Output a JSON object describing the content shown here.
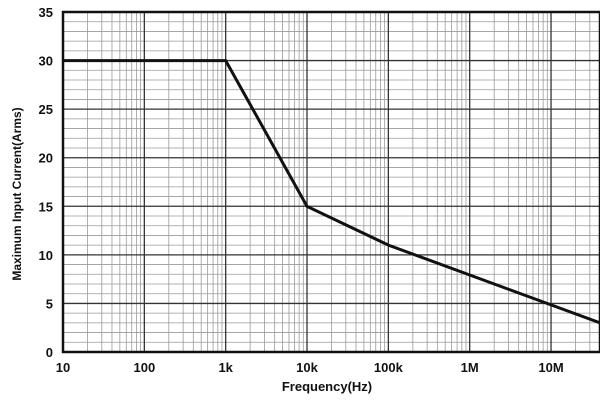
{
  "chart_data": {
    "type": "line",
    "title": "",
    "xlabel": "Frequency(Hz)",
    "ylabel": "Maximum  Input Current(Arms)",
    "x_scale": "log",
    "xlim": [
      10,
      40000000
    ],
    "ylim": [
      0,
      35
    ],
    "grid": true,
    "x_tick_values": [
      10,
      100,
      1000,
      10000,
      100000,
      1000000,
      10000000
    ],
    "x_tick_labels": [
      "10",
      "100",
      "1k",
      "10k",
      "100k",
      "1M",
      "10M"
    ],
    "y_tick_values": [
      0,
      5,
      10,
      15,
      20,
      25,
      30,
      35
    ],
    "y_tick_labels": [
      "0",
      "5",
      "10",
      "15",
      "20",
      "25",
      "30",
      "35"
    ],
    "series": [
      {
        "x": [
          10,
          1000,
          10000,
          100000,
          40000000
        ],
        "y": [
          30,
          30,
          15,
          11,
          3
        ]
      }
    ],
    "colors": {
      "line": "#111111",
      "major_grid": "#333333",
      "minor_grid": "#9a9a9a",
      "frame": "#111111"
    }
  }
}
